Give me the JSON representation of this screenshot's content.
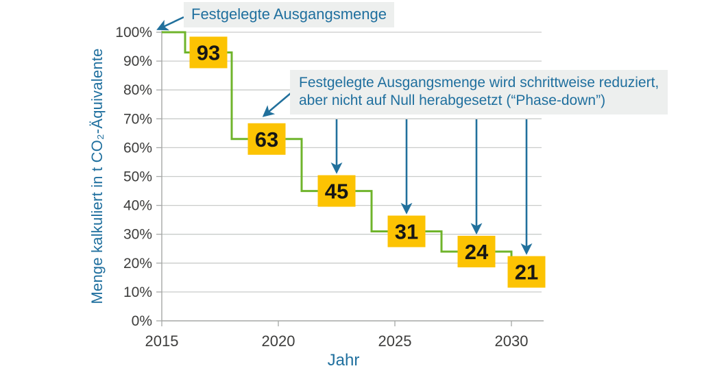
{
  "chart_data": {
    "type": "line",
    "step_interpolation": true,
    "title": "",
    "xlabel": "Jahr",
    "ylabel": "Menge kalkuliert in t CO₂-Äquivalente",
    "x_ticks": [
      2015,
      2020,
      2025,
      2030
    ],
    "y_ticks": [
      "0%",
      "10%",
      "20%",
      "30%",
      "40%",
      "50%",
      "60%",
      "70%",
      "80%",
      "90%",
      "100%"
    ],
    "xlim": [
      2015,
      2031.3
    ],
    "ylim": [
      0,
      100
    ],
    "grid": true,
    "steps": [
      {
        "from": 2015,
        "to": 2016,
        "value": 100,
        "label": null
      },
      {
        "from": 2016,
        "to": 2018,
        "value": 93,
        "label": "93"
      },
      {
        "from": 2018,
        "to": 2021,
        "value": 63,
        "label": "63"
      },
      {
        "from": 2021,
        "to": 2024,
        "value": 45,
        "label": "45"
      },
      {
        "from": 2024,
        "to": 2027,
        "value": 31,
        "label": "31"
      },
      {
        "from": 2027,
        "to": 2030,
        "value": 24,
        "label": "24"
      },
      {
        "from": 2030,
        "to": 2031.3,
        "value": 21,
        "label": "21"
      }
    ],
    "annotations": [
      {
        "text": "Festgelegte Ausgangsmenge",
        "points_to": "start of curve at 2015 / 100%"
      },
      {
        "lines": [
          "Festgelegte Ausgangsmenge wird schrittweise reduziert,",
          "aber nicht auf Null herabgesetzt (“Phase-down”)"
        ],
        "points_to": [
          "63",
          "45",
          "31",
          "24",
          "21"
        ]
      }
    ],
    "colors": {
      "line": "#6fb42b",
      "value_box": "#fcc303",
      "value_text": "#161616",
      "annotation_text": "#1f6f9e",
      "annotation_bg": "#edefee",
      "arrow": "#21709c",
      "gridline": "#c9cbca",
      "axis_line": "#a5a7a6",
      "axis_text": "#3d3d3c"
    }
  }
}
